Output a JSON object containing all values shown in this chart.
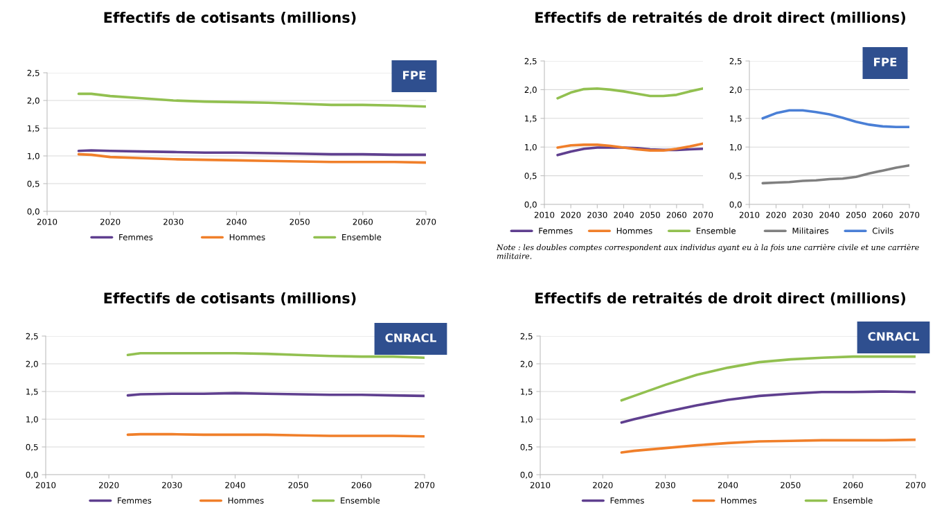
{
  "chart_data": [
    {
      "type": "line",
      "title": "Effectifs de cotisants (millions)",
      "annotations": [
        "FPE"
      ],
      "x": [
        2015,
        2017,
        2020,
        2025,
        2030,
        2035,
        2040,
        2045,
        2050,
        2055,
        2060,
        2065,
        2070
      ],
      "series": [
        {
          "name": "Femmes",
          "color": "#5f3f8f",
          "values": [
            1.09,
            1.1,
            1.09,
            1.08,
            1.07,
            1.06,
            1.06,
            1.05,
            1.04,
            1.03,
            1.03,
            1.02,
            1.02
          ]
        },
        {
          "name": "Hommes",
          "color": "#f07f2a",
          "values": [
            1.03,
            1.02,
            0.98,
            0.96,
            0.94,
            0.93,
            0.92,
            0.91,
            0.9,
            0.89,
            0.89,
            0.89,
            0.88
          ]
        },
        {
          "name": "Ensemble",
          "color": "#92c050",
          "values": [
            2.12,
            2.12,
            2.08,
            2.04,
            2.0,
            1.98,
            1.97,
            1.96,
            1.94,
            1.92,
            1.92,
            1.91,
            1.89
          ]
        }
      ],
      "xlim": [
        2010,
        2070
      ],
      "xticks": [
        2010,
        2020,
        2030,
        2040,
        2050,
        2060,
        2070
      ],
      "ylim": [
        0,
        2.5
      ],
      "yticks": [
        {
          "value": 0,
          "label": "0,0"
        },
        {
          "value": 0.5,
          "label": "0,5"
        },
        {
          "value": 1,
          "label": "1,0"
        },
        {
          "value": 1.5,
          "label": "1,5"
        },
        {
          "value": 2,
          "label": "2,0"
        },
        {
          "value": 2.5,
          "label": "2,5"
        }
      ],
      "grid": "y",
      "legend": "bottom",
      "marker": "none",
      "line_style": "solid"
    },
    {
      "type": "line",
      "title": "Effectifs de retraités de droit direct (millions)",
      "x": [
        2015,
        2020,
        2025,
        2030,
        2035,
        2040,
        2045,
        2050,
        2055,
        2060,
        2065,
        2070
      ],
      "series": [
        {
          "name": "Femmes",
          "color": "#5f3f8f",
          "values": [
            0.86,
            0.92,
            0.97,
            0.99,
            0.99,
            0.99,
            0.98,
            0.96,
            0.95,
            0.95,
            0.96,
            0.97
          ]
        },
        {
          "name": "Hommes",
          "color": "#f07f2a",
          "values": [
            0.99,
            1.03,
            1.04,
            1.04,
            1.02,
            0.99,
            0.96,
            0.94,
            0.94,
            0.97,
            1.01,
            1.06
          ]
        },
        {
          "name": "Ensemble",
          "color": "#92c050",
          "values": [
            1.85,
            1.95,
            2.01,
            2.02,
            2.0,
            1.97,
            1.93,
            1.89,
            1.89,
            1.91,
            1.97,
            2.02
          ]
        }
      ],
      "xlim": [
        2010,
        2070
      ],
      "xticks": [
        2010,
        2020,
        2030,
        2040,
        2050,
        2060,
        2070
      ],
      "ylim": [
        0,
        2.5
      ],
      "yticks": [
        {
          "value": 0,
          "label": "0,0"
        },
        {
          "value": 0.5,
          "label": "0,5"
        },
        {
          "value": 1,
          "label": "1,0"
        },
        {
          "value": 1.5,
          "label": "1,5"
        },
        {
          "value": 2,
          "label": "2,0"
        },
        {
          "value": 2.5,
          "label": "2,5"
        }
      ],
      "grid": "y",
      "legend": "bottom",
      "marker": "none",
      "line_style": "solid"
    },
    {
      "type": "line",
      "annotations": [
        "FPE",
        "Note : les doubles comptes correspondent aux individus ayant eu à la fois une carrière civile et une carrière militaire."
      ],
      "x": [
        2015,
        2020,
        2025,
        2030,
        2035,
        2040,
        2045,
        2050,
        2055,
        2060,
        2065,
        2070
      ],
      "series": [
        {
          "name": "Militaires",
          "color": "#808080",
          "values": [
            0.37,
            0.38,
            0.39,
            0.41,
            0.42,
            0.44,
            0.45,
            0.48,
            0.54,
            0.59,
            0.64,
            0.68
          ]
        },
        {
          "name": "Civils",
          "color": "#4a7fd6",
          "values": [
            1.5,
            1.59,
            1.64,
            1.64,
            1.61,
            1.57,
            1.51,
            1.44,
            1.39,
            1.36,
            1.35,
            1.35
          ]
        }
      ],
      "xlim": [
        2010,
        2070
      ],
      "xticks": [
        2010,
        2020,
        2030,
        2040,
        2050,
        2060,
        2070
      ],
      "ylim": [
        0,
        2.5
      ],
      "yticks": [
        {
          "value": 0,
          "label": "0,0"
        },
        {
          "value": 0.5,
          "label": "0,5"
        },
        {
          "value": 1,
          "label": "1,0"
        },
        {
          "value": 1.5,
          "label": "1,5"
        },
        {
          "value": 2,
          "label": "2,0"
        },
        {
          "value": 2.5,
          "label": "2,5"
        }
      ],
      "grid": "y",
      "legend": "bottom",
      "marker": "none",
      "line_style": "solid"
    },
    {
      "type": "line",
      "title": "Effectifs de cotisants (millions)",
      "annotations": [
        "CNRACL"
      ],
      "x": [
        2023,
        2025,
        2030,
        2035,
        2040,
        2045,
        2050,
        2055,
        2060,
        2065,
        2070
      ],
      "series": [
        {
          "name": "Femmes",
          "color": "#5f3f8f",
          "values": [
            1.43,
            1.45,
            1.46,
            1.46,
            1.47,
            1.46,
            1.45,
            1.44,
            1.44,
            1.43,
            1.42
          ]
        },
        {
          "name": "Hommes",
          "color": "#f07f2a",
          "values": [
            0.72,
            0.73,
            0.73,
            0.72,
            0.72,
            0.72,
            0.71,
            0.7,
            0.7,
            0.7,
            0.69
          ]
        },
        {
          "name": "Ensemble",
          "color": "#92c050",
          "values": [
            2.16,
            2.19,
            2.19,
            2.19,
            2.19,
            2.18,
            2.16,
            2.14,
            2.13,
            2.13,
            2.11
          ]
        }
      ],
      "xlim": [
        2010,
        2070
      ],
      "xticks": [
        2010,
        2020,
        2030,
        2040,
        2050,
        2060,
        2070
      ],
      "ylim": [
        0,
        2.5
      ],
      "yticks": [
        {
          "value": 0,
          "label": "0,0"
        },
        {
          "value": 0.5,
          "label": "0,5"
        },
        {
          "value": 1,
          "label": "1,0"
        },
        {
          "value": 1.5,
          "label": "1,5"
        },
        {
          "value": 2,
          "label": "2,0"
        },
        {
          "value": 2.5,
          "label": "2,5"
        }
      ],
      "grid": "y",
      "legend": "bottom",
      "marker": "none",
      "line_style": "solid"
    },
    {
      "type": "line",
      "title": "Effectifs de retraités de droit direct (millions)",
      "annotations": [
        "CNRACL"
      ],
      "x": [
        2023,
        2025,
        2030,
        2035,
        2040,
        2045,
        2050,
        2055,
        2060,
        2065,
        2070
      ],
      "series": [
        {
          "name": "Femmes",
          "color": "#5f3f8f",
          "values": [
            0.94,
            1.0,
            1.13,
            1.25,
            1.35,
            1.42,
            1.46,
            1.49,
            1.49,
            1.5,
            1.49
          ]
        },
        {
          "name": "Hommes",
          "color": "#f07f2a",
          "values": [
            0.4,
            0.43,
            0.48,
            0.53,
            0.57,
            0.6,
            0.61,
            0.62,
            0.62,
            0.62,
            0.63
          ]
        },
        {
          "name": "Ensemble",
          "color": "#92c050",
          "values": [
            1.34,
            1.42,
            1.62,
            1.8,
            1.93,
            2.03,
            2.08,
            2.11,
            2.13,
            2.13,
            2.13
          ]
        }
      ],
      "xlim": [
        2010,
        2070
      ],
      "xticks": [
        2010,
        2020,
        2030,
        2040,
        2050,
        2060,
        2070
      ],
      "ylim": [
        0,
        2.5
      ],
      "yticks": [
        {
          "value": 0,
          "label": "0,0"
        },
        {
          "value": 0.5,
          "label": "0,5"
        },
        {
          "value": 1,
          "label": "1,0"
        },
        {
          "value": 1.5,
          "label": "1,5"
        },
        {
          "value": 2,
          "label": "2,0"
        },
        {
          "value": 2.5,
          "label": "2,5"
        }
      ],
      "grid": "y",
      "legend": "bottom",
      "marker": "none",
      "line_style": "solid"
    }
  ]
}
